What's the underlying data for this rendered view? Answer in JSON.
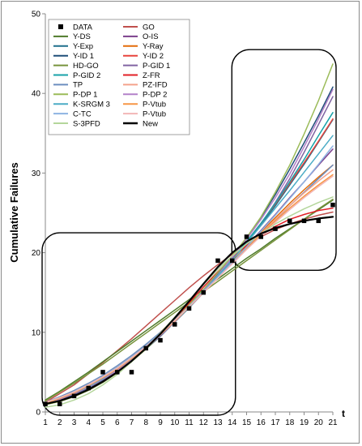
{
  "chart_data": {
    "type": "line",
    "title": "",
    "xlabel": "t",
    "ylabel": "Cumulative Failures",
    "xlim": [
      1,
      21
    ],
    "ylim": [
      0,
      50
    ],
    "x_ticks": [
      1,
      2,
      3,
      4,
      5,
      6,
      7,
      8,
      9,
      10,
      11,
      12,
      13,
      14,
      15,
      16,
      17,
      18,
      19,
      20,
      21
    ],
    "y_ticks": [
      0,
      10,
      20,
      30,
      40,
      50
    ],
    "grid": false,
    "legend_position": "top-left",
    "legend_columns": 2,
    "x": [
      1,
      2,
      3,
      4,
      5,
      6,
      7,
      8,
      9,
      10,
      11,
      12,
      13,
      14,
      15,
      16,
      17,
      18,
      19,
      20,
      21
    ],
    "data_points": [
      1,
      1,
      2,
      3,
      5,
      5,
      5,
      8,
      9,
      11,
      13,
      15,
      19,
      19,
      22,
      22,
      23,
      24,
      24,
      24,
      26
    ],
    "series": [
      {
        "name": "GO",
        "color": "#c0504d",
        "values": [
          1.2,
          2.3,
          3.4,
          4.8,
          6.2,
          7.7,
          9.2,
          10.8,
          12.4,
          14.0,
          15.6,
          17.1,
          18.5,
          19.8,
          21.0,
          22.0,
          22.9,
          23.6,
          24.2,
          24.7,
          25.1
        ]
      },
      {
        "name": "Y-DS",
        "color": "#4e7a2a",
        "values": [
          1.5,
          2.6,
          3.8,
          5.0,
          6.3,
          7.6,
          8.9,
          10.2,
          11.5,
          12.8,
          14.1,
          15.4,
          16.7,
          18.0,
          19.3,
          20.5,
          21.8,
          23.0,
          24.2,
          25.4,
          26.6
        ]
      },
      {
        "name": "O-IS",
        "color": "#7b3f8c",
        "values": [
          1.1,
          1.6,
          2.3,
          3.1,
          4.1,
          5.3,
          6.6,
          8.1,
          9.7,
          11.4,
          13.1,
          15.0,
          16.9,
          18.8,
          20.8,
          22.8,
          24.8,
          26.9,
          28.9,
          31.0,
          33.0
        ]
      },
      {
        "name": "Y-Exp",
        "color": "#1f6f8b",
        "values": [
          1.1,
          1.7,
          2.4,
          3.2,
          4.2,
          5.3,
          6.6,
          8.0,
          9.6,
          11.3,
          13.1,
          15.0,
          17.0,
          19.1,
          21.2,
          23.5,
          25.9,
          28.5,
          31.1,
          33.9,
          36.7
        ]
      },
      {
        "name": "Y-Ray",
        "color": "#e46c0a",
        "values": [
          1.2,
          1.8,
          2.5,
          3.4,
          4.4,
          5.6,
          6.9,
          8.4,
          10.0,
          11.7,
          13.5,
          15.3,
          17.1,
          18.9,
          20.8,
          22.6,
          24.4,
          26.2,
          27.9,
          29.5,
          31.0
        ]
      },
      {
        "name": "Y-ID 1",
        "color": "#1f4e79",
        "values": [
          1.0,
          1.5,
          2.2,
          3.0,
          4.0,
          5.1,
          6.4,
          7.9,
          9.5,
          11.3,
          13.2,
          15.2,
          17.3,
          19.5,
          21.8,
          24.4,
          27.3,
          30.5,
          33.8,
          37.2,
          40.8
        ]
      },
      {
        "name": "Y-ID 2",
        "color": "#e8433c",
        "values": [
          1.1,
          1.6,
          2.3,
          3.1,
          4.1,
          5.2,
          6.5,
          8.0,
          9.6,
          11.3,
          13.1,
          15.1,
          17.1,
          19.2,
          21.4,
          23.7,
          26.1,
          28.7,
          31.3,
          34.0,
          36.8
        ]
      },
      {
        "name": "HD-GO",
        "color": "#77933c",
        "values": [
          1.4,
          2.5,
          3.6,
          4.8,
          6.0,
          7.3,
          8.6,
          9.9,
          11.2,
          12.5,
          13.8,
          15.1,
          16.4,
          17.7,
          19.0,
          20.3,
          21.6,
          22.9,
          24.2,
          25.5,
          26.7
        ]
      },
      {
        "name": "P-GID 1",
        "color": "#8064a2",
        "values": [
          1.1,
          1.7,
          2.4,
          3.2,
          4.2,
          5.3,
          6.6,
          8.0,
          9.6,
          11.3,
          13.1,
          15.0,
          17.0,
          19.1,
          21.2,
          23.6,
          26.3,
          29.3,
          32.6,
          36.1,
          39.6
        ]
      },
      {
        "name": "P-GID 2",
        "color": "#17a2a8",
        "values": [
          1.1,
          1.7,
          2.4,
          3.2,
          4.2,
          5.3,
          6.6,
          8.0,
          9.6,
          11.3,
          13.1,
          15.1,
          17.1,
          19.2,
          21.4,
          23.7,
          26.2,
          28.9,
          31.7,
          34.7,
          37.6
        ]
      },
      {
        "name": "Z-FR",
        "color": "#e21f26",
        "values": [
          1.0,
          1.4,
          2.0,
          2.8,
          3.8,
          5.0,
          6.4,
          8.0,
          9.8,
          11.7,
          13.7,
          15.7,
          17.6,
          19.4,
          20.9,
          22.2,
          23.3,
          24.2,
          24.8,
          25.3,
          25.6
        ]
      },
      {
        "name": "TP",
        "color": "#6c8ebf",
        "values": [
          1.2,
          1.9,
          2.7,
          3.6,
          4.6,
          5.8,
          7.1,
          8.5,
          10.0,
          11.6,
          13.3,
          15.1,
          16.9,
          18.7,
          20.5,
          22.3,
          24.1,
          25.9,
          27.6,
          29.3,
          31.0
        ]
      },
      {
        "name": "PZ-IFD",
        "color": "#f4a28c",
        "values": [
          1.1,
          1.7,
          2.4,
          3.3,
          4.3,
          5.4,
          6.7,
          8.1,
          9.7,
          11.4,
          13.2,
          15.0,
          16.8,
          18.7,
          20.6,
          22.4,
          24.2,
          25.9,
          27.5,
          29.0,
          30.4
        ]
      },
      {
        "name": "P-DP 1",
        "color": "#9bbb59",
        "values": [
          0.9,
          1.3,
          1.9,
          2.7,
          3.7,
          4.9,
          6.3,
          7.9,
          9.6,
          11.5,
          13.4,
          15.4,
          17.5,
          19.6,
          21.9,
          24.5,
          27.6,
          31.0,
          34.9,
          39.1,
          43.7
        ]
      },
      {
        "name": "P-DP 2",
        "color": "#b381c9",
        "values": [
          1.1,
          1.6,
          2.3,
          3.1,
          4.1,
          5.2,
          6.5,
          8.0,
          9.6,
          11.3,
          13.2,
          15.2,
          17.2,
          19.4,
          21.7,
          24.2,
          26.9,
          29.9,
          33.3,
          36.8,
          40.5
        ]
      },
      {
        "name": "K-SRGM 3",
        "color": "#4bacc6",
        "values": [
          1.1,
          1.7,
          2.4,
          3.2,
          4.2,
          5.4,
          6.7,
          8.1,
          9.7,
          11.4,
          13.2,
          15.1,
          17.1,
          19.1,
          21.2,
          23.4,
          25.6,
          27.8,
          30.1,
          32.4,
          34.7
        ]
      },
      {
        "name": "P-Vtub",
        "color": "#f79646",
        "values": [
          1.1,
          1.7,
          2.4,
          3.3,
          4.3,
          5.4,
          6.7,
          8.1,
          9.7,
          11.4,
          13.2,
          15.0,
          16.8,
          18.7,
          20.6,
          22.3,
          24.0,
          25.6,
          27.1,
          28.5,
          29.8
        ]
      },
      {
        "name": "C-TC",
        "color": "#8db3e2",
        "values": [
          1.2,
          1.8,
          2.5,
          3.4,
          4.4,
          5.6,
          6.9,
          8.3,
          9.9,
          11.5,
          13.3,
          15.1,
          16.9,
          18.8,
          20.7,
          22.7,
          24.7,
          26.8,
          28.9,
          31.1,
          33.4
        ]
      },
      {
        "name": "P-Vtub",
        "color": "#f2b6b6",
        "values": [
          1.2,
          1.8,
          2.5,
          3.4,
          4.4,
          5.5,
          6.8,
          8.2,
          9.8,
          11.5,
          13.2,
          15.0,
          16.8,
          18.6,
          20.4,
          22.1,
          23.8,
          25.4,
          26.9,
          28.3,
          29.6
        ]
      },
      {
        "name": "S-3PFD",
        "color": "#b4d69b",
        "values": [
          0.6,
          0.9,
          1.5,
          2.3,
          3.4,
          4.7,
          6.3,
          8.0,
          9.9,
          11.9,
          14.0,
          16.0,
          17.9,
          19.6,
          21.1,
          22.4,
          23.6,
          24.6,
          25.5,
          26.3,
          27.0
        ]
      },
      {
        "name": "New",
        "color": "#000000",
        "values": [
          1.0,
          1.4,
          2.0,
          2.8,
          3.8,
          5.0,
          6.4,
          8.0,
          9.8,
          11.8,
          13.9,
          16.1,
          18.2,
          20.0,
          21.4,
          22.4,
          23.1,
          23.6,
          24.0,
          24.3,
          24.5
        ]
      }
    ],
    "legend": [
      {
        "label": "DATA",
        "kind": "marker",
        "color": "#000000"
      },
      {
        "label": "GO",
        "kind": "line",
        "color": "#c0504d"
      },
      {
        "label": "Y-DS",
        "kind": "line",
        "color": "#4e7a2a"
      },
      {
        "label": "O-IS",
        "kind": "line",
        "color": "#7b3f8c"
      },
      {
        "label": "Y-Exp",
        "kind": "line",
        "color": "#1f6f8b"
      },
      {
        "label": "Y-Ray",
        "kind": "line",
        "color": "#e46c0a"
      },
      {
        "label": "Y-ID 1",
        "kind": "line",
        "color": "#1f4e79"
      },
      {
        "label": "Y-ID 2",
        "kind": "line",
        "color": "#e8433c"
      },
      {
        "label": "HD-GO",
        "kind": "line",
        "color": "#77933c"
      },
      {
        "label": "P-GID 1",
        "kind": "line",
        "color": "#8064a2"
      },
      {
        "label": "P-GID 2",
        "kind": "line",
        "color": "#17a2a8"
      },
      {
        "label": "Z-FR",
        "kind": "line",
        "color": "#e21f26"
      },
      {
        "label": "TP",
        "kind": "line",
        "color": "#6c8ebf"
      },
      {
        "label": "PZ-IFD",
        "kind": "line",
        "color": "#f4a28c"
      },
      {
        "label": "P-DP 1",
        "kind": "line",
        "color": "#9bbb59"
      },
      {
        "label": "P-DP 2",
        "kind": "line",
        "color": "#b381c9"
      },
      {
        "label": "K-SRGM 3",
        "kind": "line",
        "color": "#4bacc6"
      },
      {
        "label": "P-Vtub",
        "kind": "line",
        "color": "#f79646"
      },
      {
        "label": "C-TC",
        "kind": "line",
        "color": "#8db3e2"
      },
      {
        "label": "P-Vtub",
        "kind": "line",
        "color": "#f2b6b6"
      },
      {
        "label": "S-3PFD",
        "kind": "line",
        "color": "#b4d69b"
      },
      {
        "label": "New",
        "kind": "line",
        "color": "#000000"
      }
    ],
    "annotations": [
      {
        "type": "rounded-rectangle",
        "x_range": [
          1,
          14
        ],
        "y_range": [
          0,
          22.5
        ]
      },
      {
        "type": "rounded-rectangle",
        "x_range": [
          14.2,
          21
        ],
        "y_range": [
          18.2,
          45.5
        ]
      }
    ]
  }
}
